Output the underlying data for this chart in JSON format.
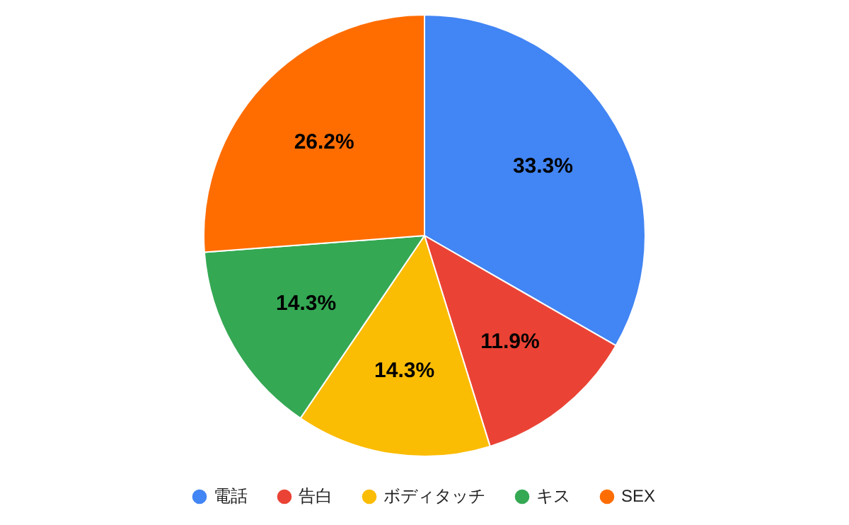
{
  "chart_data": {
    "type": "pie",
    "categories": [
      "電話",
      "告白",
      "ボディタッチ",
      "キス",
      "SEX"
    ],
    "values": [
      33.3,
      11.9,
      14.3,
      14.3,
      26.2
    ],
    "colors": [
      "#4285f4",
      "#ea4335",
      "#fbbc04",
      "#34a853",
      "#ff6d01"
    ],
    "value_labels": [
      "33.3%",
      "11.9%",
      "14.3%",
      "14.3%",
      "26.2%"
    ],
    "legend": "bottom"
  }
}
